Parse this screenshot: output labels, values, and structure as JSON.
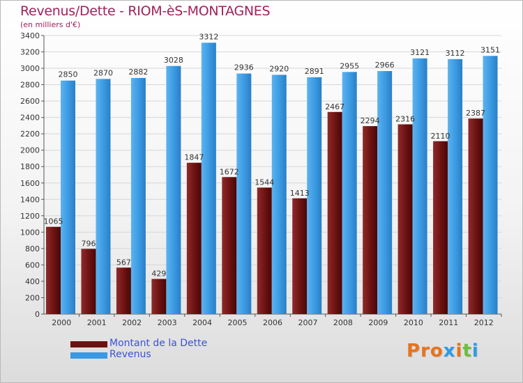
{
  "title": "Revenus/Dette - RIOM-èS-MONTAGNES",
  "subtitle": "(en milliers d'€)",
  "logo": {
    "text": "Proxiti",
    "colors": [
      "#e8731a",
      "#e8731a",
      "#e8731a",
      "#2f9be6",
      "#e8731a",
      "#6bbf3a",
      "#2f9be6"
    ]
  },
  "colors": {
    "debt": "#7a1818",
    "revenue": "#3a99e2",
    "title": "#a2215a",
    "legend_text": "#3b52d8"
  },
  "chart_data": {
    "type": "bar",
    "title": "Revenus/Dette - RIOM-èS-MONTAGNES",
    "subtitle": "(en milliers d'€)",
    "categories": [
      "2000",
      "2001",
      "2002",
      "2003",
      "2004",
      "2005",
      "2006",
      "2007",
      "2008",
      "2009",
      "2010",
      "2011",
      "2012"
    ],
    "series": [
      {
        "name": "Montant de la Dette",
        "values": [
          1065,
          796,
          567,
          429,
          1847,
          1672,
          1544,
          1413,
          2467,
          2294,
          2316,
          2110,
          2387
        ]
      },
      {
        "name": "Revenus",
        "values": [
          2850,
          2870,
          2882,
          3028,
          3312,
          2936,
          2920,
          2891,
          2955,
          2966,
          3121,
          3112,
          3151
        ]
      }
    ],
    "ylim": [
      0,
      3400
    ],
    "yticks": [
      0,
      200,
      400,
      600,
      800,
      1000,
      1200,
      1400,
      1600,
      1800,
      2000,
      2200,
      2400,
      2600,
      2800,
      3000,
      3200,
      3400
    ],
    "grid": true,
    "legend_position": "bottom-left"
  }
}
